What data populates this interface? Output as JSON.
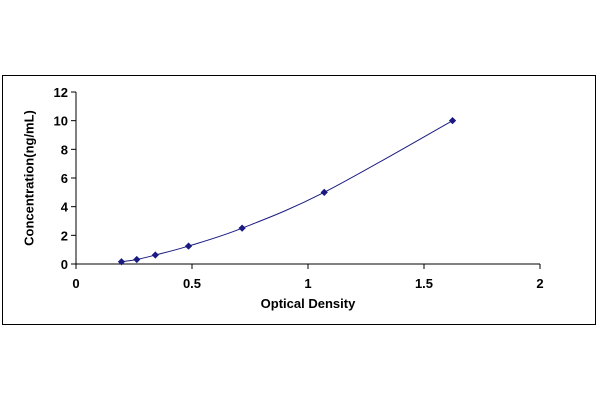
{
  "chart_data": {
    "type": "scatter",
    "title": "",
    "xlabel": "Optical Density",
    "ylabel": "Concentration(ng/mL)",
    "xlim": [
      0,
      2
    ],
    "ylim": [
      0,
      12
    ],
    "x_ticks": [
      0,
      0.5,
      1,
      1.5,
      2
    ],
    "x_tick_labels": [
      "0",
      "0.5",
      "1",
      "1.5",
      "2"
    ],
    "y_ticks": [
      0,
      2,
      4,
      6,
      8,
      10,
      12
    ],
    "y_tick_labels": [
      "0",
      "2",
      "4",
      "6",
      "8",
      "10",
      "12"
    ],
    "grid": false,
    "legend": "none",
    "series": [
      {
        "marker": "diamond",
        "marker_color": "#1a1a80",
        "line_color": "#1a1a80",
        "trendline": "smooth",
        "x": [
          0.196,
          0.262,
          0.342,
          0.485,
          0.716,
          1.07,
          1.623
        ],
        "y": [
          0.156,
          0.312,
          0.625,
          1.25,
          2.5,
          5,
          10
        ]
      }
    ]
  }
}
